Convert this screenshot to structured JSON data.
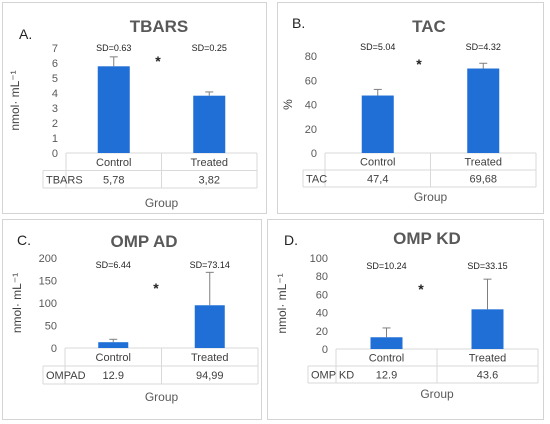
{
  "chart_data": [
    {
      "type": "bar",
      "panel_letter": "A.",
      "title": "TBARS",
      "ylabel": "nmol· mL⁻¹",
      "xlabel": "Group",
      "categories": [
        "Control",
        "Treated"
      ],
      "series": [
        {
          "name": "TBARS",
          "values": [
            5.78,
            3.82
          ]
        }
      ],
      "table_values": [
        "5,78",
        "3,82"
      ],
      "error_bars_shown": [
        0.63,
        0.25
      ],
      "sd_labels": [
        "SD=0.63",
        "SD=0.25"
      ],
      "significance": "*",
      "ylim": [
        0,
        7
      ],
      "yticks": [
        0,
        1,
        2,
        3,
        4,
        5,
        6,
        7
      ],
      "grid": false,
      "bar_color": "#1f6fd6"
    },
    {
      "type": "bar",
      "panel_letter": "B.",
      "title": "TAC",
      "ylabel": "%",
      "xlabel": "Group",
      "categories": [
        "Control",
        "Treated"
      ],
      "series": [
        {
          "name": "TAC",
          "values": [
            47.4,
            69.68
          ]
        }
      ],
      "table_values": [
        "47,4",
        "69,68"
      ],
      "error_bars_shown": [
        5.04,
        4.32
      ],
      "sd_labels": [
        "SD=5.04",
        "SD=4.32"
      ],
      "significance": "*",
      "ylim": [
        0,
        80
      ],
      "yticks": [
        0,
        20,
        40,
        60,
        80
      ],
      "grid": false,
      "bar_color": "#1f6fd6"
    },
    {
      "type": "bar",
      "panel_letter": "C.",
      "title": "OMP AD",
      "ylabel": "nmol· mL⁻¹",
      "xlabel": "Group",
      "categories": [
        "Control",
        "Treated"
      ],
      "series": [
        {
          "name": "OMPAD",
          "values": [
            12.9,
            94.99
          ]
        }
      ],
      "table_values": [
        "12.9",
        "94,99"
      ],
      "error_bars_shown": [
        6.44,
        73.14
      ],
      "sd_labels": [
        "SD=6.44",
        "SD=73.14"
      ],
      "significance": "*",
      "ylim": [
        0,
        200
      ],
      "yticks": [
        0,
        50,
        100,
        150,
        200
      ],
      "grid": false,
      "bar_color": "#1f6fd6"
    },
    {
      "type": "bar",
      "panel_letter": "D.",
      "title": "OMP KD",
      "ylabel": "nmol· mL⁻¹",
      "xlabel": "Group",
      "categories": [
        "Control",
        "Treated"
      ],
      "series": [
        {
          "name": "OMP KD",
          "values": [
            12.9,
            43.6
          ]
        }
      ],
      "table_values": [
        "12.9",
        "43.6"
      ],
      "error_bars_shown": [
        10.24,
        33.15
      ],
      "sd_labels": [
        "SD=10.24",
        "SD=33.15"
      ],
      "significance": "*",
      "ylim": [
        0,
        100
      ],
      "yticks": [
        0,
        20,
        40,
        60,
        80,
        100
      ],
      "grid": false,
      "bar_color": "#1f6fd6"
    }
  ]
}
